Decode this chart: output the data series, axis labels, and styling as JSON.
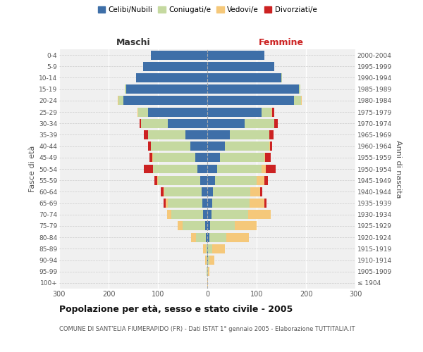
{
  "age_groups": [
    "100+",
    "95-99",
    "90-94",
    "85-89",
    "80-84",
    "75-79",
    "70-74",
    "65-69",
    "60-64",
    "55-59",
    "50-54",
    "45-49",
    "40-44",
    "35-39",
    "30-34",
    "25-29",
    "20-24",
    "15-19",
    "10-14",
    "5-9",
    "0-4"
  ],
  "birth_years": [
    "≤ 1904",
    "1905-1909",
    "1910-1914",
    "1915-1919",
    "1920-1924",
    "1925-1929",
    "1930-1934",
    "1935-1939",
    "1940-1944",
    "1945-1949",
    "1950-1954",
    "1955-1959",
    "1960-1964",
    "1965-1969",
    "1970-1974",
    "1975-1979",
    "1980-1984",
    "1985-1989",
    "1990-1994",
    "1995-1999",
    "2000-2004"
  ],
  "maschi": {
    "celibi": [
      0,
      0,
      0,
      0,
      3,
      5,
      8,
      10,
      12,
      15,
      20,
      25,
      35,
      45,
      80,
      120,
      170,
      165,
      145,
      130,
      115
    ],
    "coniugati": [
      0,
      1,
      2,
      3,
      20,
      45,
      65,
      70,
      75,
      85,
      90,
      85,
      80,
      75,
      55,
      20,
      10,
      2,
      0,
      0,
      0
    ],
    "vedovi": [
      0,
      1,
      3,
      5,
      10,
      10,
      8,
      4,
      2,
      1,
      0,
      1,
      0,
      0,
      0,
      1,
      2,
      0,
      0,
      0,
      0
    ],
    "divorziati": [
      0,
      0,
      0,
      0,
      0,
      0,
      0,
      4,
      5,
      6,
      18,
      6,
      5,
      8,
      2,
      0,
      0,
      0,
      0,
      0,
      0
    ]
  },
  "femmine": {
    "nubili": [
      0,
      0,
      1,
      2,
      4,
      5,
      8,
      10,
      12,
      15,
      20,
      25,
      35,
      45,
      75,
      110,
      175,
      185,
      150,
      135,
      115
    ],
    "coniugate": [
      0,
      1,
      3,
      8,
      35,
      50,
      75,
      75,
      75,
      85,
      90,
      90,
      90,
      80,
      60,
      20,
      15,
      3,
      1,
      0,
      0
    ],
    "vedove": [
      1,
      3,
      10,
      25,
      45,
      45,
      45,
      30,
      20,
      15,
      8,
      2,
      2,
      1,
      0,
      1,
      2,
      0,
      0,
      0,
      0
    ],
    "divorziate": [
      0,
      0,
      0,
      0,
      0,
      0,
      0,
      5,
      4,
      8,
      20,
      12,
      5,
      8,
      8,
      5,
      0,
      0,
      0,
      0,
      0
    ]
  },
  "colors": {
    "celibi": "#3e6fa8",
    "coniugati": "#c5d9a0",
    "vedovi": "#f5c87a",
    "divorziati": "#cc2222"
  },
  "xlim": 300,
  "title": "Popolazione per età, sesso e stato civile - 2005",
  "subtitle": "COMUNE DI SANT'ELIA FIUMERAPIDO (FR) - Dati ISTAT 1° gennaio 2005 - Elaborazione TUTTITALIA.IT",
  "xlabel_left": "Maschi",
  "xlabel_right": "Femmine",
  "ylabel_left": "Fasce di età",
  "ylabel_right": "Anni di nascita",
  "bg_color": "#ffffff",
  "plot_bg": "#f0f0f0"
}
